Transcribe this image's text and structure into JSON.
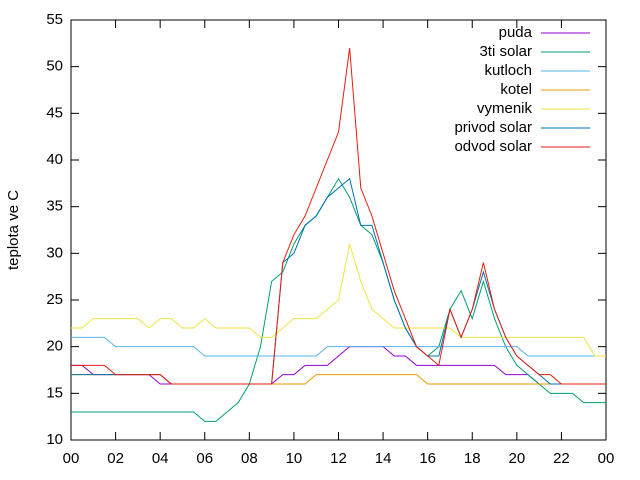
{
  "chart_data": {
    "type": "line",
    "ylabel": "teplota ve C",
    "x": [
      0,
      0.5,
      1,
      1.5,
      2,
      2.5,
      3,
      3.5,
      4,
      4.5,
      5,
      5.5,
      6,
      6.5,
      7,
      7.5,
      8,
      8.5,
      9,
      9.5,
      10,
      10.5,
      11,
      11.5,
      12,
      12.5,
      13,
      13.5,
      14,
      14.5,
      15,
      15.5,
      16,
      16.5,
      17,
      17.5,
      18,
      18.5,
      19,
      19.5,
      20,
      20.5,
      21,
      21.5,
      22,
      22.5,
      23,
      23.5,
      24
    ],
    "series": [
      {
        "name": "puda",
        "color": "#9400d3",
        "values": [
          18,
          18,
          17,
          17,
          17,
          17,
          17,
          17,
          16,
          16,
          16,
          16,
          16,
          16,
          16,
          16,
          16,
          16,
          16,
          17,
          17,
          18,
          18,
          18,
          19,
          20,
          20,
          20,
          20,
          19,
          19,
          18,
          18,
          18,
          18,
          18,
          18,
          18,
          18,
          17,
          17,
          17,
          16,
          16,
          16,
          16,
          16,
          16,
          16
        ]
      },
      {
        "name": "3ti solar",
        "color": "#009e73",
        "values": [
          13,
          13,
          13,
          13,
          13,
          13,
          13,
          13,
          13,
          13,
          13,
          13,
          12,
          12,
          13,
          14,
          16,
          20,
          27,
          28,
          31,
          33,
          34,
          36,
          38,
          36,
          33,
          32,
          29,
          25,
          22,
          20,
          19,
          20,
          24,
          26,
          23,
          27,
          23,
          20,
          18,
          17,
          16,
          15,
          15,
          15,
          14,
          14,
          14
        ]
      },
      {
        "name": "kutloch",
        "color": "#56b4e9",
        "values": [
          21,
          21,
          21,
          21,
          20,
          20,
          20,
          20,
          20,
          20,
          20,
          20,
          19,
          19,
          19,
          19,
          19,
          19,
          19,
          19,
          19,
          19,
          19,
          20,
          20,
          20,
          20,
          20,
          20,
          20,
          20,
          20,
          20,
          20,
          20,
          20,
          20,
          20,
          20,
          20,
          20,
          19,
          19,
          19,
          19,
          19,
          19,
          19,
          19
        ]
      },
      {
        "name": "kotel",
        "color": "#e69f00",
        "values": [
          17,
          17,
          17,
          17,
          17,
          17,
          17,
          17,
          17,
          16,
          16,
          16,
          16,
          16,
          16,
          16,
          16,
          16,
          16,
          16,
          16,
          16,
          17,
          17,
          17,
          17,
          17,
          17,
          17,
          17,
          17,
          17,
          16,
          16,
          16,
          16,
          16,
          16,
          16,
          16,
          16,
          16,
          16,
          16,
          16,
          16,
          16,
          16,
          16
        ]
      },
      {
        "name": "vymenik",
        "color": "#f0e442",
        "values": [
          22,
          22,
          23,
          23,
          23,
          23,
          23,
          22,
          23,
          23,
          22,
          22,
          23,
          22,
          22,
          22,
          22,
          21,
          21,
          22,
          23,
          23,
          23,
          24,
          25,
          31,
          27,
          24,
          23,
          22,
          22,
          22,
          22,
          22,
          22,
          21,
          21,
          21,
          21,
          21,
          21,
          21,
          21,
          21,
          21,
          21,
          21,
          19,
          19
        ]
      },
      {
        "name": "privod solar",
        "color": "#0072b2",
        "values": [
          17,
          17,
          17,
          17,
          17,
          17,
          17,
          17,
          17,
          16,
          16,
          16,
          16,
          16,
          16,
          16,
          16,
          16,
          16,
          29,
          30,
          33,
          34,
          36,
          37,
          38,
          33,
          33,
          29,
          25,
          22,
          20,
          19,
          19,
          24,
          21,
          24,
          28,
          24,
          21,
          19,
          18,
          17,
          16,
          16,
          16,
          16,
          16,
          16
        ]
      },
      {
        "name": "odvod solar",
        "color": "#e51e10",
        "values": [
          18,
          18,
          18,
          18,
          17,
          17,
          17,
          17,
          17,
          16,
          16,
          16,
          16,
          16,
          16,
          16,
          16,
          16,
          16,
          29,
          32,
          34,
          37,
          40,
          43,
          52,
          37,
          34,
          30,
          26,
          23,
          20,
          19,
          18,
          24,
          21,
          24,
          29,
          24,
          21,
          19,
          18,
          17,
          17,
          16,
          16,
          16,
          16,
          16
        ]
      }
    ],
    "xlim": [
      0,
      24
    ],
    "xticks": [
      {
        "value": 0,
        "label": "00"
      },
      {
        "value": 2,
        "label": "02"
      },
      {
        "value": 4,
        "label": "04"
      },
      {
        "value": 6,
        "label": "06"
      },
      {
        "value": 8,
        "label": "08"
      },
      10,
      12,
      14,
      16,
      18,
      20,
      22,
      {
        "value": 24,
        "label": "00"
      }
    ],
    "ylim": [
      10,
      55
    ],
    "yticks": [
      10,
      15,
      20,
      25,
      30,
      35,
      40,
      45,
      50,
      55
    ],
    "legend": "top-right"
  }
}
